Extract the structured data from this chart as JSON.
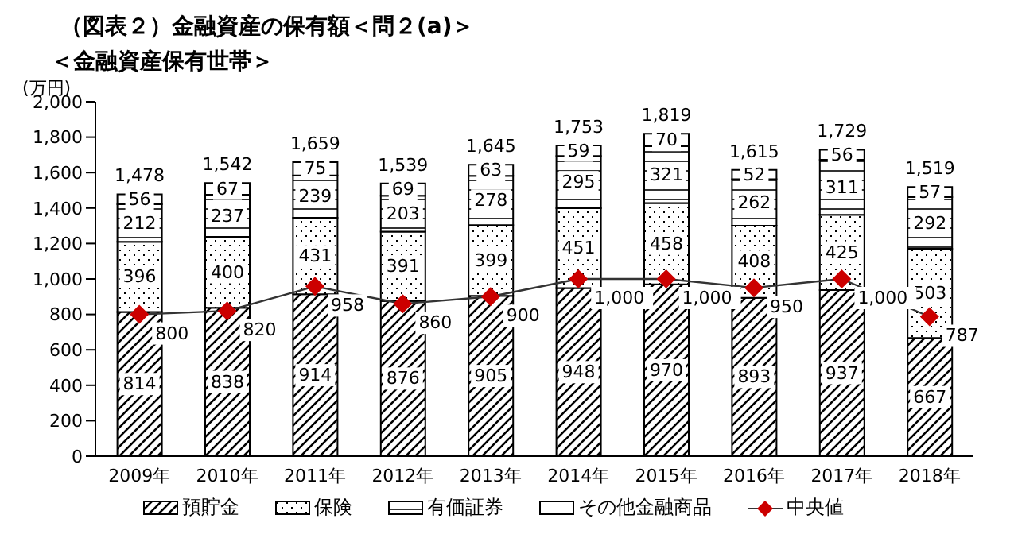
{
  "chart_data": {
    "type": "bar",
    "title": "（図表２）金融資産の保有額＜問２(a)＞",
    "subtitle": "＜金融資産保有世帯＞",
    "ylabel": "(万円)",
    "categories": [
      "2009年",
      "2010年",
      "2011年",
      "2012年",
      "2013年",
      "2014年",
      "2015年",
      "2016年",
      "2017年",
      "2018年"
    ],
    "stacked": true,
    "series": [
      {
        "name": "預貯金",
        "color": "#000000",
        "values": [
          814,
          838,
          914,
          876,
          905,
          948,
          970,
          893,
          937,
          667
        ]
      },
      {
        "name": "保険",
        "color": "#000000",
        "values": [
          396,
          400,
          431,
          391,
          399,
          451,
          458,
          408,
          425,
          503
        ]
      },
      {
        "name": "有価証券",
        "color": "#000000",
        "values": [
          212,
          237,
          239,
          203,
          278,
          295,
          321,
          262,
          311,
          292
        ]
      },
      {
        "name": "その他金融商品",
        "color": "#000000",
        "values": [
          56,
          67,
          75,
          69,
          63,
          59,
          70,
          52,
          56,
          57
        ]
      },
      {
        "name": "中央値",
        "type": "line",
        "color": "#cc0000",
        "marker": "diamond",
        "values": [
          800,
          820,
          958,
          860,
          900,
          1000,
          1000,
          950,
          1000,
          787
        ],
        "value_labels": [
          "800",
          "820",
          "958",
          "860",
          "900",
          "1,000",
          "1,000",
          "950",
          "1,000",
          "787"
        ]
      }
    ],
    "totals": [
      "1,478",
      "1,542",
      "1,659",
      "1,539",
      "1,645",
      "1,753",
      "1,819",
      "1,615",
      "1,729",
      "1,519"
    ],
    "data_labels": true,
    "ylim": [
      0,
      2000
    ],
    "yticks": [
      0,
      200,
      400,
      600,
      800,
      {
        "value": 1000,
        "label": "1,000"
      },
      {
        "value": 1200,
        "label": "1,200"
      },
      {
        "value": 1400,
        "label": "1,400"
      },
      {
        "value": 1600,
        "label": "1,600"
      },
      {
        "value": 1800,
        "label": "1,800"
      },
      {
        "value": 2000,
        "label": "2,000"
      }
    ],
    "grid": false,
    "legend": "bottom"
  }
}
